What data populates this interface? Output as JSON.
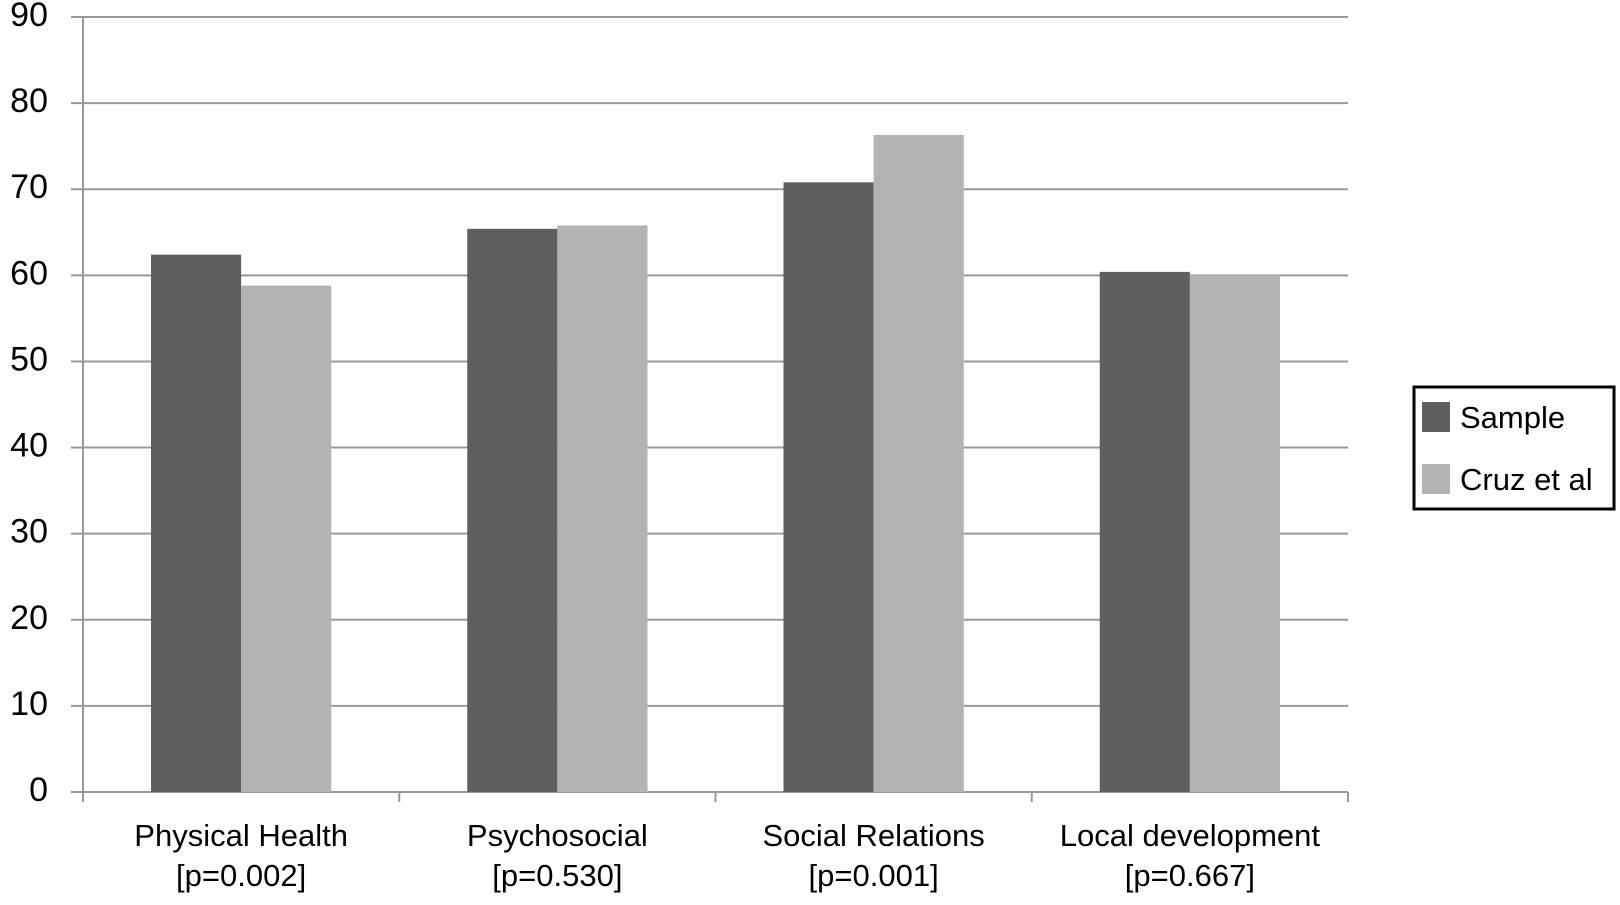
{
  "chart_data": {
    "type": "bar",
    "categories": [
      [
        "Physical Health",
        "[p=0.002]"
      ],
      [
        "Psychosocial",
        "[p=0.530]"
      ],
      [
        "Social Relations",
        "[p=0.001]"
      ],
      [
        "Local development",
        "[p=0.667]"
      ]
    ],
    "series": [
      {
        "name": "Sample",
        "color": "#5f5f5f",
        "values": [
          62.4,
          65.4,
          70.8,
          60.4
        ]
      },
      {
        "name": "Cruz et al",
        "color": "#b3b3b3",
        "values": [
          58.8,
          65.8,
          76.3,
          60.0
        ]
      }
    ],
    "ylim": [
      0,
      90
    ],
    "yticks": [
      0,
      10,
      20,
      30,
      40,
      50,
      60,
      70,
      80,
      90
    ],
    "grid": true,
    "legend": "right"
  }
}
